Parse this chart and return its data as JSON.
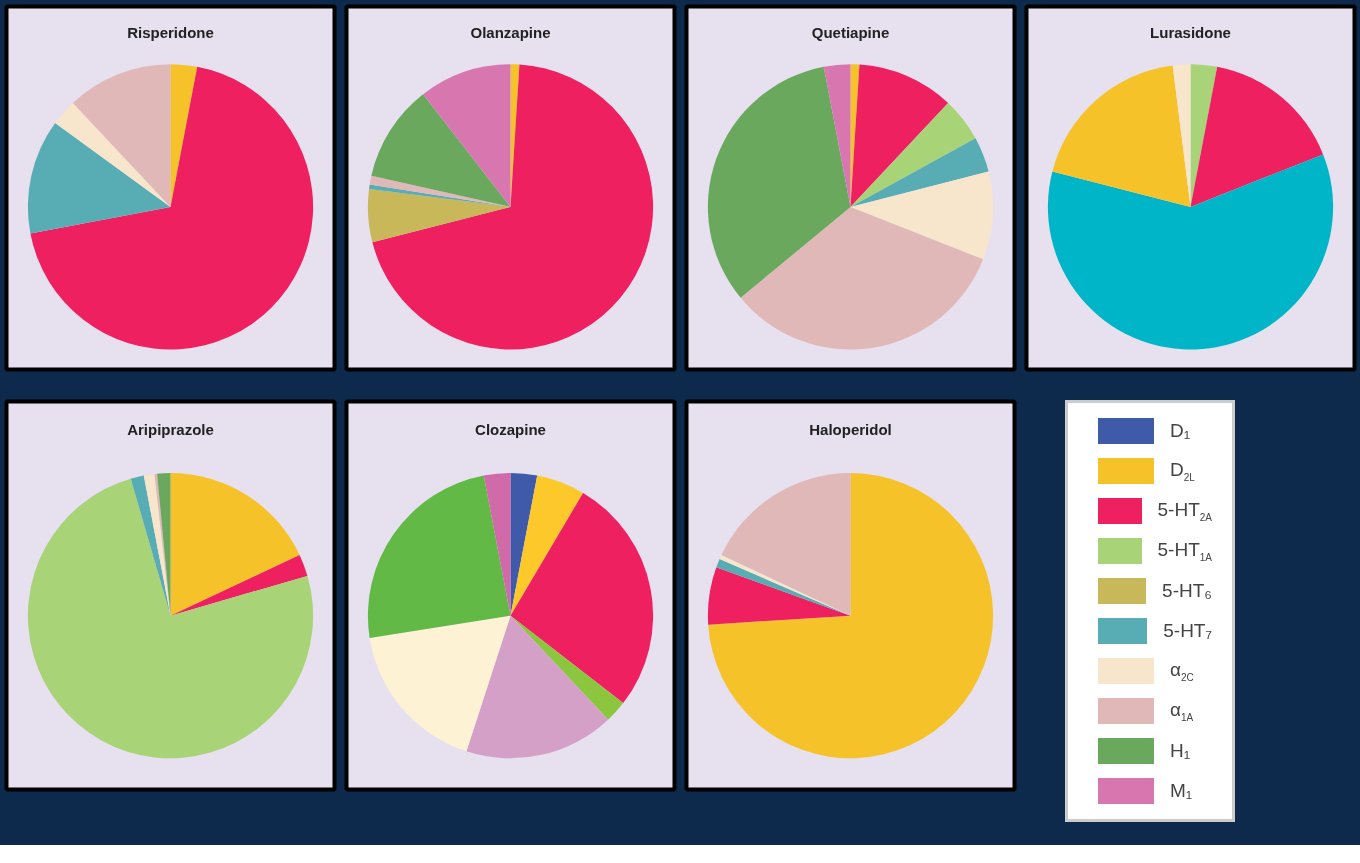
{
  "chart_data": [
    {
      "type": "pie",
      "title": "Risperidone",
      "categories": [
        "D₁",
        "D$_{2L}$",
        "5-HT$_{2A}$",
        "5-HT$_{1A}$",
        "5-HT₆",
        "5-HT₇",
        "α$_{2C}$",
        "α$_{1A}$",
        "H₁",
        "M₁"
      ],
      "values": [
        null,
        3,
        69,
        null,
        null,
        13,
        3,
        12,
        null,
        null
      ],
      "colors": [
        "#3f5aa8",
        "#f6c22a",
        "#ee2060",
        "#a8d377",
        "#c8b85a",
        "#58adb5",
        "#f7e6cc",
        "#e0b8b8",
        "#6aa85e",
        "#d876b0"
      ],
      "legend": "bottom right"
    },
    {
      "type": "pie",
      "title": "Olanzapine",
      "values": [
        1,
        70,
        6,
        0.5,
        1,
        11,
        10.5
      ],
      "colors": [
        "#f6c22a",
        "#ee2060",
        "#c8b85a",
        "#58adb5",
        "#e0b8b8",
        "#6aa85e",
        "#d876b0"
      ]
    },
    {
      "type": "pie",
      "title": "Quetiapine",
      "values": [
        1,
        11,
        5,
        4,
        10,
        33,
        33,
        3
      ],
      "colors": [
        "#f6c22a",
        "#ee2060",
        "#a8d377",
        "#58adb5",
        "#f7e6cc",
        "#e0b8b8",
        "#6aa85e",
        "#d876b0"
      ]
    },
    {
      "type": "pie",
      "title": "Lurasidone",
      "values": [
        3,
        16,
        60,
        19,
        2
      ],
      "colors": [
        "#a8d377",
        "#ee2060",
        "#00b5c8",
        "#f6c22a",
        "#f7e6cc"
      ]
    },
    {
      "type": "pie",
      "title": "Aripiprazole",
      "values": [
        18,
        2.5,
        75,
        1.5,
        1.2,
        0.3,
        1.5
      ],
      "colors": [
        "#f6c22a",
        "#ee2060",
        "#a8d377",
        "#58adb5",
        "#f7e6cc",
        "#e0b8b8",
        "#6aa85e"
      ]
    },
    {
      "type": "pie",
      "title": "Clozapine",
      "values": [
        3,
        5.5,
        27,
        2.5,
        17,
        17.5,
        24.5,
        3
      ],
      "colors": [
        "#3f5aa8",
        "#fdc92a",
        "#ee2060",
        "#8cc63f",
        "#d4a0c8",
        "#fdf2d4",
        "#62b946",
        "#d06aa8"
      ]
    },
    {
      "type": "pie",
      "title": "Haloperidol",
      "values": [
        74,
        6.5,
        1,
        0.5,
        18
      ],
      "colors": [
        "#f6c22a",
        "#ee2060",
        "#58adb5",
        "#f7e6cc",
        "#e0b8b8"
      ]
    }
  ]
}
